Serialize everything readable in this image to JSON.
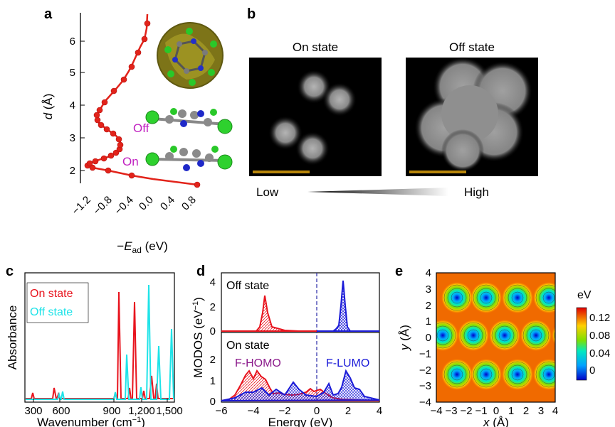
{
  "panels": {
    "a": {
      "label": "a",
      "yticks": [
        "2",
        "3",
        "4",
        "5",
        "6"
      ],
      "xticks": [
        "−1.2",
        "−0.8",
        "−0.4",
        "0.0",
        "0.4",
        "0.8"
      ],
      "ylabel_var": "d",
      "ylabel_unit": " (Å)",
      "xlabel_prefix": "−",
      "xlabel_var": "E",
      "xlabel_sub": "ad",
      "xlabel_unit": " (eV)",
      "off_label": "Off",
      "on_label": "On",
      "colors": {
        "curve": "#e2231a",
        "off_text": "#c01fc0",
        "on_text": "#c01fc0"
      }
    },
    "b": {
      "label": "b",
      "on_title": "On state",
      "off_title": "Off state",
      "low_label": "Low",
      "high_label": "High",
      "colors": {
        "scale_bar": "#b8860b"
      }
    },
    "c": {
      "label": "c",
      "ylabel": "Absorbance",
      "xlabel": "Wavenumber (cm",
      "xlabel_sup": "−1",
      "xlabel_end": ")",
      "xticks": [
        "300",
        "600",
        "900",
        "1,200",
        "1,500"
      ],
      "legend": [
        "On state",
        "Off state"
      ],
      "colors": {
        "on": "#e8141e",
        "off": "#1fe3e8"
      }
    },
    "d": {
      "label": "d",
      "off_title": "Off state",
      "on_title": "On state",
      "homo_label": "F-HOMO",
      "lumo_label": "F-LUMO",
      "ylabel": "MODOS (eV",
      "ylabel_sup": "−1",
      "ylabel_end": ")",
      "xlabel": "Energy (eV)",
      "xticks": [
        "−6",
        "−4",
        "−2",
        "0",
        "2",
        "4"
      ],
      "yticks_top": [
        "0",
        "2",
        "4"
      ],
      "yticks_bottom": [
        "0",
        "1",
        "2"
      ],
      "colors": {
        "homo": "#e8141e",
        "lumo": "#1b1bd8",
        "homo_text": "#8b1a8b",
        "lumo_text": "#1b1bd8"
      }
    },
    "e": {
      "label": "e",
      "xticks": [
        "−4",
        "−3",
        "−2",
        "−1",
        "0",
        "1",
        "2",
        "3",
        "4"
      ],
      "yticks": [
        "4",
        "3",
        "2",
        "1",
        "0",
        "−1",
        "−2",
        "−3",
        "−4"
      ],
      "xlabel_var": "x",
      "xlabel_unit": " (Å)",
      "ylabel_var": "y",
      "ylabel_unit": " (Å)",
      "colorbar_title": "eV",
      "colorbar_ticks": [
        "0.12",
        "0.08",
        "0.04",
        "0"
      ]
    }
  }
}
